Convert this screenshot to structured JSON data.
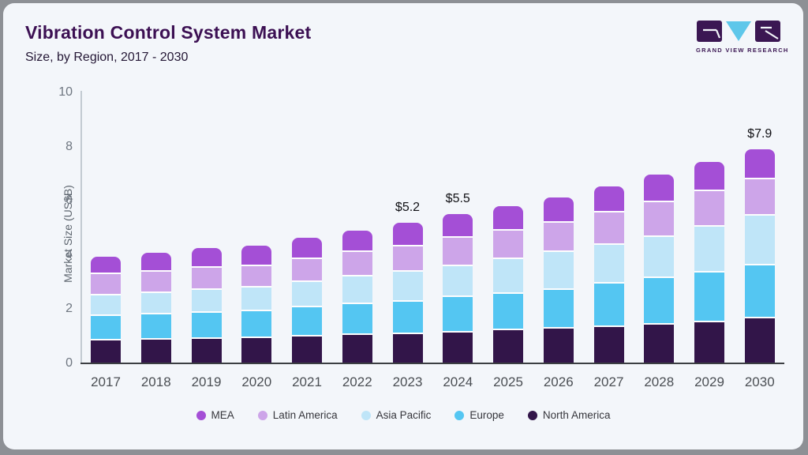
{
  "header": {
    "title": "Vibration Control System Market",
    "subtitle": "Size, by Region, 2017 - 2030"
  },
  "logo": {
    "name": "grand-view-research-logo",
    "text": "GRAND VIEW RESEARCH",
    "block_color": "#3b1753",
    "triangle_color": "#5ec7ea"
  },
  "chart_data": {
    "type": "bar",
    "stacked": true,
    "title": "Vibration Control System Market Size, by Region, 2017 - 2030",
    "xlabel": "",
    "ylabel": "Market Size (US$B)",
    "ylim": [
      0,
      10
    ],
    "yticks": [
      0,
      2,
      4,
      6,
      8,
      10
    ],
    "grid": false,
    "legend_position": "bottom",
    "categories": [
      "2017",
      "2018",
      "2019",
      "2020",
      "2021",
      "2022",
      "2023",
      "2024",
      "2025",
      "2026",
      "2027",
      "2028",
      "2029",
      "2030"
    ],
    "series": [
      {
        "name": "North America",
        "color": "#321549",
        "values": [
          0.85,
          0.87,
          0.9,
          0.92,
          0.99,
          1.05,
          1.09,
          1.15,
          1.22,
          1.28,
          1.34,
          1.44,
          1.52,
          1.65
        ]
      },
      {
        "name": "Europe",
        "color": "#54c6f2",
        "values": [
          0.9,
          0.93,
          0.97,
          1.0,
          1.07,
          1.15,
          1.19,
          1.3,
          1.33,
          1.44,
          1.6,
          1.7,
          1.82,
          1.95
        ]
      },
      {
        "name": "Asia Pacific",
        "color": "#bfe5f8",
        "values": [
          0.75,
          0.78,
          0.83,
          0.88,
          0.95,
          1.02,
          1.1,
          1.15,
          1.29,
          1.38,
          1.43,
          1.52,
          1.71,
          1.85
        ]
      },
      {
        "name": "Latin America",
        "color": "#cda5e9",
        "values": [
          0.8,
          0.8,
          0.83,
          0.8,
          0.83,
          0.88,
          0.92,
          1.04,
          1.07,
          1.1,
          1.19,
          1.28,
          1.3,
          1.35
        ]
      },
      {
        "name": "MEA",
        "color": "#a44fd6",
        "values": [
          0.65,
          0.7,
          0.72,
          0.75,
          0.8,
          0.8,
          0.9,
          0.86,
          0.89,
          0.92,
          0.96,
          1.03,
          1.07,
          1.1
        ]
      }
    ],
    "totals": [
      3.95,
      4.08,
      4.25,
      4.35,
      4.64,
      4.9,
      5.2,
      5.5,
      5.8,
      6.12,
      6.52,
      6.97,
      7.42,
      7.9
    ],
    "annotations": {
      "2023": "$5.2",
      "2024": "$5.5",
      "2030": "$7.9"
    },
    "legend_order": [
      "MEA",
      "Latin America",
      "Asia Pacific",
      "Europe",
      "North America"
    ]
  }
}
